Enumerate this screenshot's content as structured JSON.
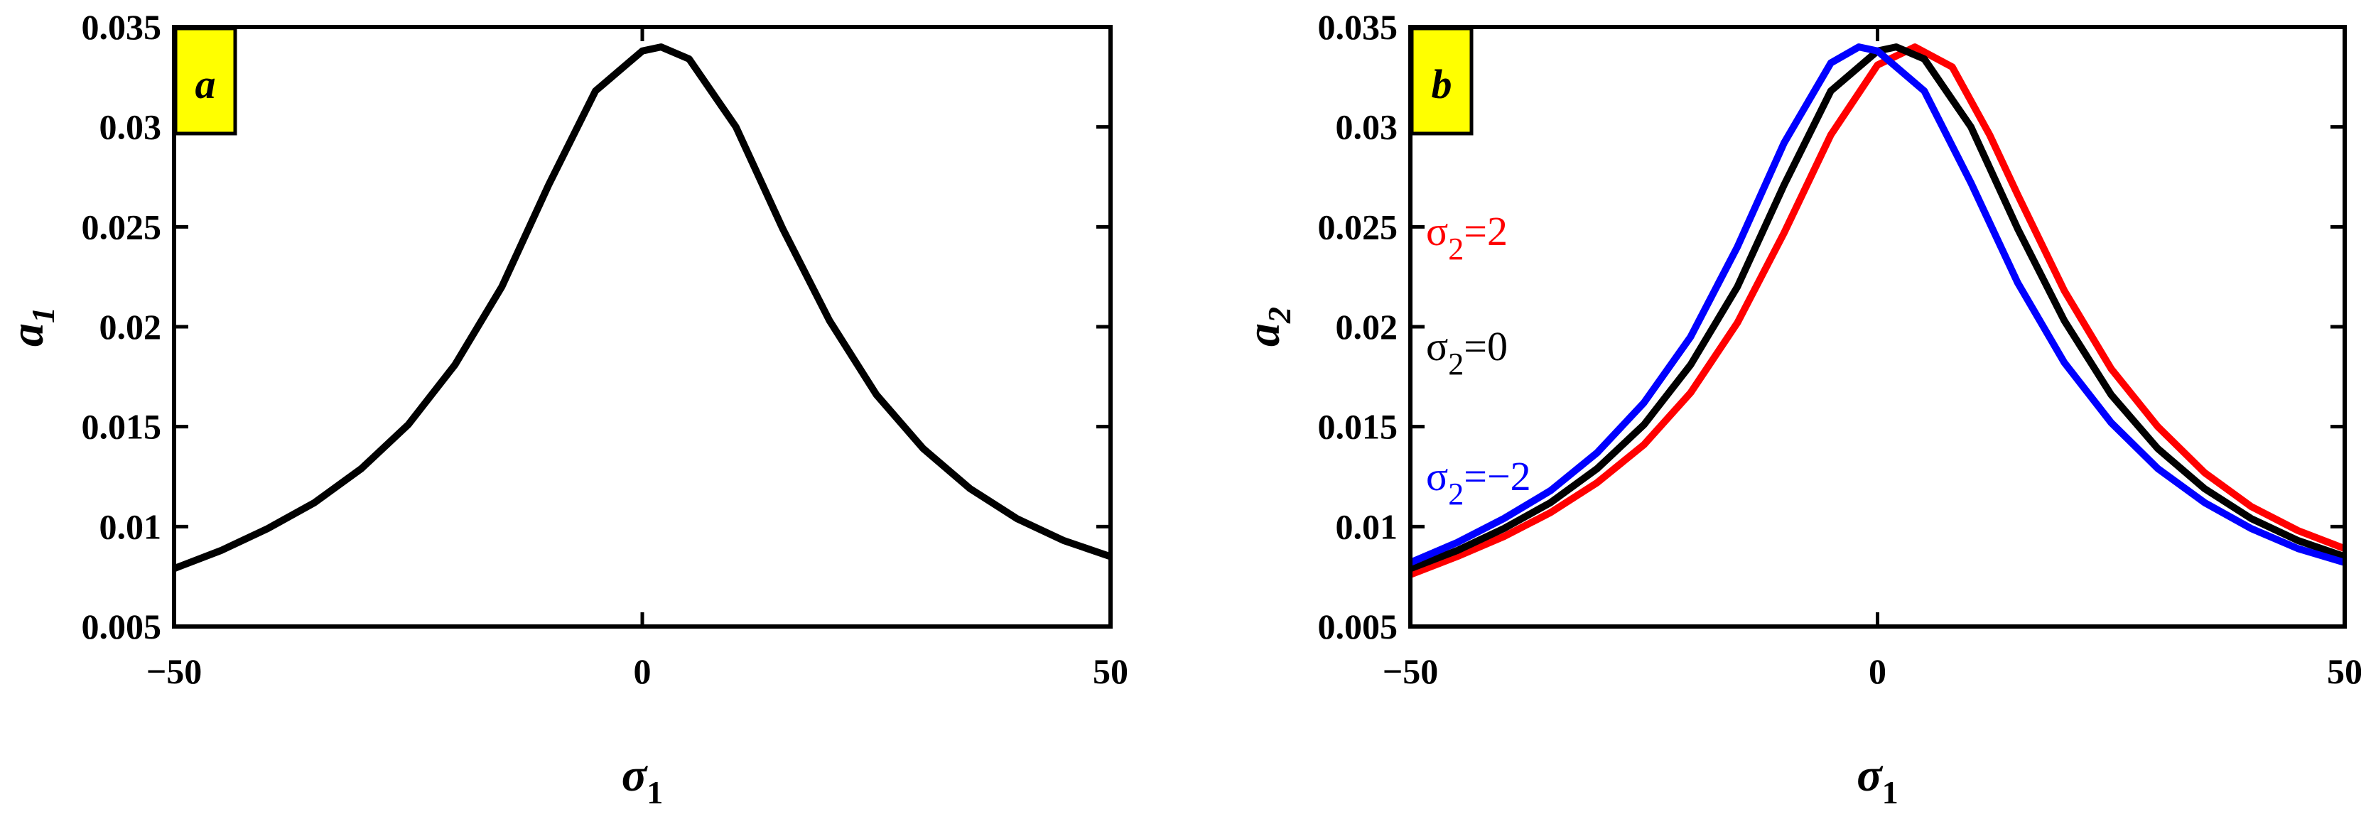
{
  "chart_data": [
    {
      "type": "line",
      "panel_label": "a",
      "xlabel": "σ1",
      "ylabel": "a1",
      "xlim": [
        -50,
        50
      ],
      "ylim": [
        0.005,
        0.035
      ],
      "xticks": [
        -50,
        0,
        50
      ],
      "xtick_labels": [
        "−50",
        "0",
        "50"
      ],
      "yticks": [
        0.005,
        0.01,
        0.015,
        0.02,
        0.025,
        0.03,
        0.035
      ],
      "ytick_labels": [
        "0.005",
        "0.01",
        "0.015",
        "0.02",
        "0.025",
        "0.03",
        "0.035"
      ],
      "grid": false,
      "series": [
        {
          "color": "#000000",
          "x": [
            -50,
            -45,
            -40,
            -35,
            -30,
            -25,
            -20,
            -15,
            -10,
            -5,
            0,
            2,
            5,
            10,
            15,
            20,
            25,
            30,
            35,
            40,
            45,
            50
          ],
          "y": [
            0.0079,
            0.0088,
            0.0099,
            0.0112,
            0.0129,
            0.0151,
            0.0181,
            0.022,
            0.0271,
            0.0318,
            0.0338,
            0.034,
            0.0334,
            0.03,
            0.0249,
            0.0203,
            0.0166,
            0.0139,
            0.0119,
            0.0104,
            0.0093,
            0.0085
          ]
        }
      ]
    },
    {
      "type": "line",
      "panel_label": "b",
      "xlabel": "σ1",
      "ylabel": "a2",
      "xlim": [
        -50,
        50
      ],
      "ylim": [
        0.005,
        0.035
      ],
      "xticks": [
        -50,
        0,
        50
      ],
      "xtick_labels": [
        "−50",
        "0",
        "50"
      ],
      "yticks": [
        0.005,
        0.01,
        0.015,
        0.02,
        0.025,
        0.03,
        0.035
      ],
      "ytick_labels": [
        "0.005",
        "0.01",
        "0.015",
        "0.02",
        "0.025",
        "0.03",
        "0.035"
      ],
      "grid": false,
      "annotations": [
        {
          "base": "σ",
          "sub": "2",
          "rest": "=2",
          "color": "#ff0000"
        },
        {
          "base": "σ",
          "sub": "2",
          "rest": "=0",
          "color": "#000000"
        },
        {
          "base": "σ",
          "sub": "2",
          "rest": "=−2",
          "color": "#0000ff"
        }
      ],
      "series": [
        {
          "name": "σ2=2",
          "color": "#ff0000",
          "x": [
            -50,
            -45,
            -40,
            -35,
            -30,
            -25,
            -20,
            -15,
            -10,
            -5,
            0,
            4,
            8,
            12,
            15,
            20,
            25,
            30,
            35,
            40,
            45,
            50
          ],
          "y": [
            0.0076,
            0.0085,
            0.0095,
            0.0107,
            0.0122,
            0.0141,
            0.0167,
            0.0202,
            0.0247,
            0.0296,
            0.0331,
            0.034,
            0.033,
            0.0296,
            0.0266,
            0.0218,
            0.0179,
            0.015,
            0.0127,
            0.011,
            0.0098,
            0.0089
          ]
        },
        {
          "name": "σ2=0",
          "color": "#000000",
          "x": [
            -50,
            -45,
            -40,
            -35,
            -30,
            -25,
            -20,
            -15,
            -10,
            -5,
            0,
            2,
            5,
            10,
            15,
            20,
            25,
            30,
            35,
            40,
            45,
            50
          ],
          "y": [
            0.0079,
            0.0088,
            0.0099,
            0.0112,
            0.0129,
            0.0151,
            0.0181,
            0.022,
            0.0271,
            0.0318,
            0.0338,
            0.034,
            0.0334,
            0.03,
            0.0249,
            0.0203,
            0.0166,
            0.0139,
            0.0119,
            0.0104,
            0.0093,
            0.0085
          ]
        },
        {
          "name": "σ2=−2",
          "color": "#0000ff",
          "x": [
            -50,
            -45,
            -40,
            -35,
            -30,
            -25,
            -20,
            -15,
            -10,
            -5,
            -2,
            0,
            5,
            10,
            15,
            20,
            25,
            30,
            35,
            40,
            45,
            50
          ],
          "y": [
            0.0082,
            0.0092,
            0.0104,
            0.0118,
            0.0137,
            0.0162,
            0.0195,
            0.024,
            0.0292,
            0.0332,
            0.034,
            0.0338,
            0.0318,
            0.0272,
            0.0222,
            0.0182,
            0.0152,
            0.0129,
            0.0112,
            0.0099,
            0.0089,
            0.0082
          ]
        }
      ]
    }
  ]
}
